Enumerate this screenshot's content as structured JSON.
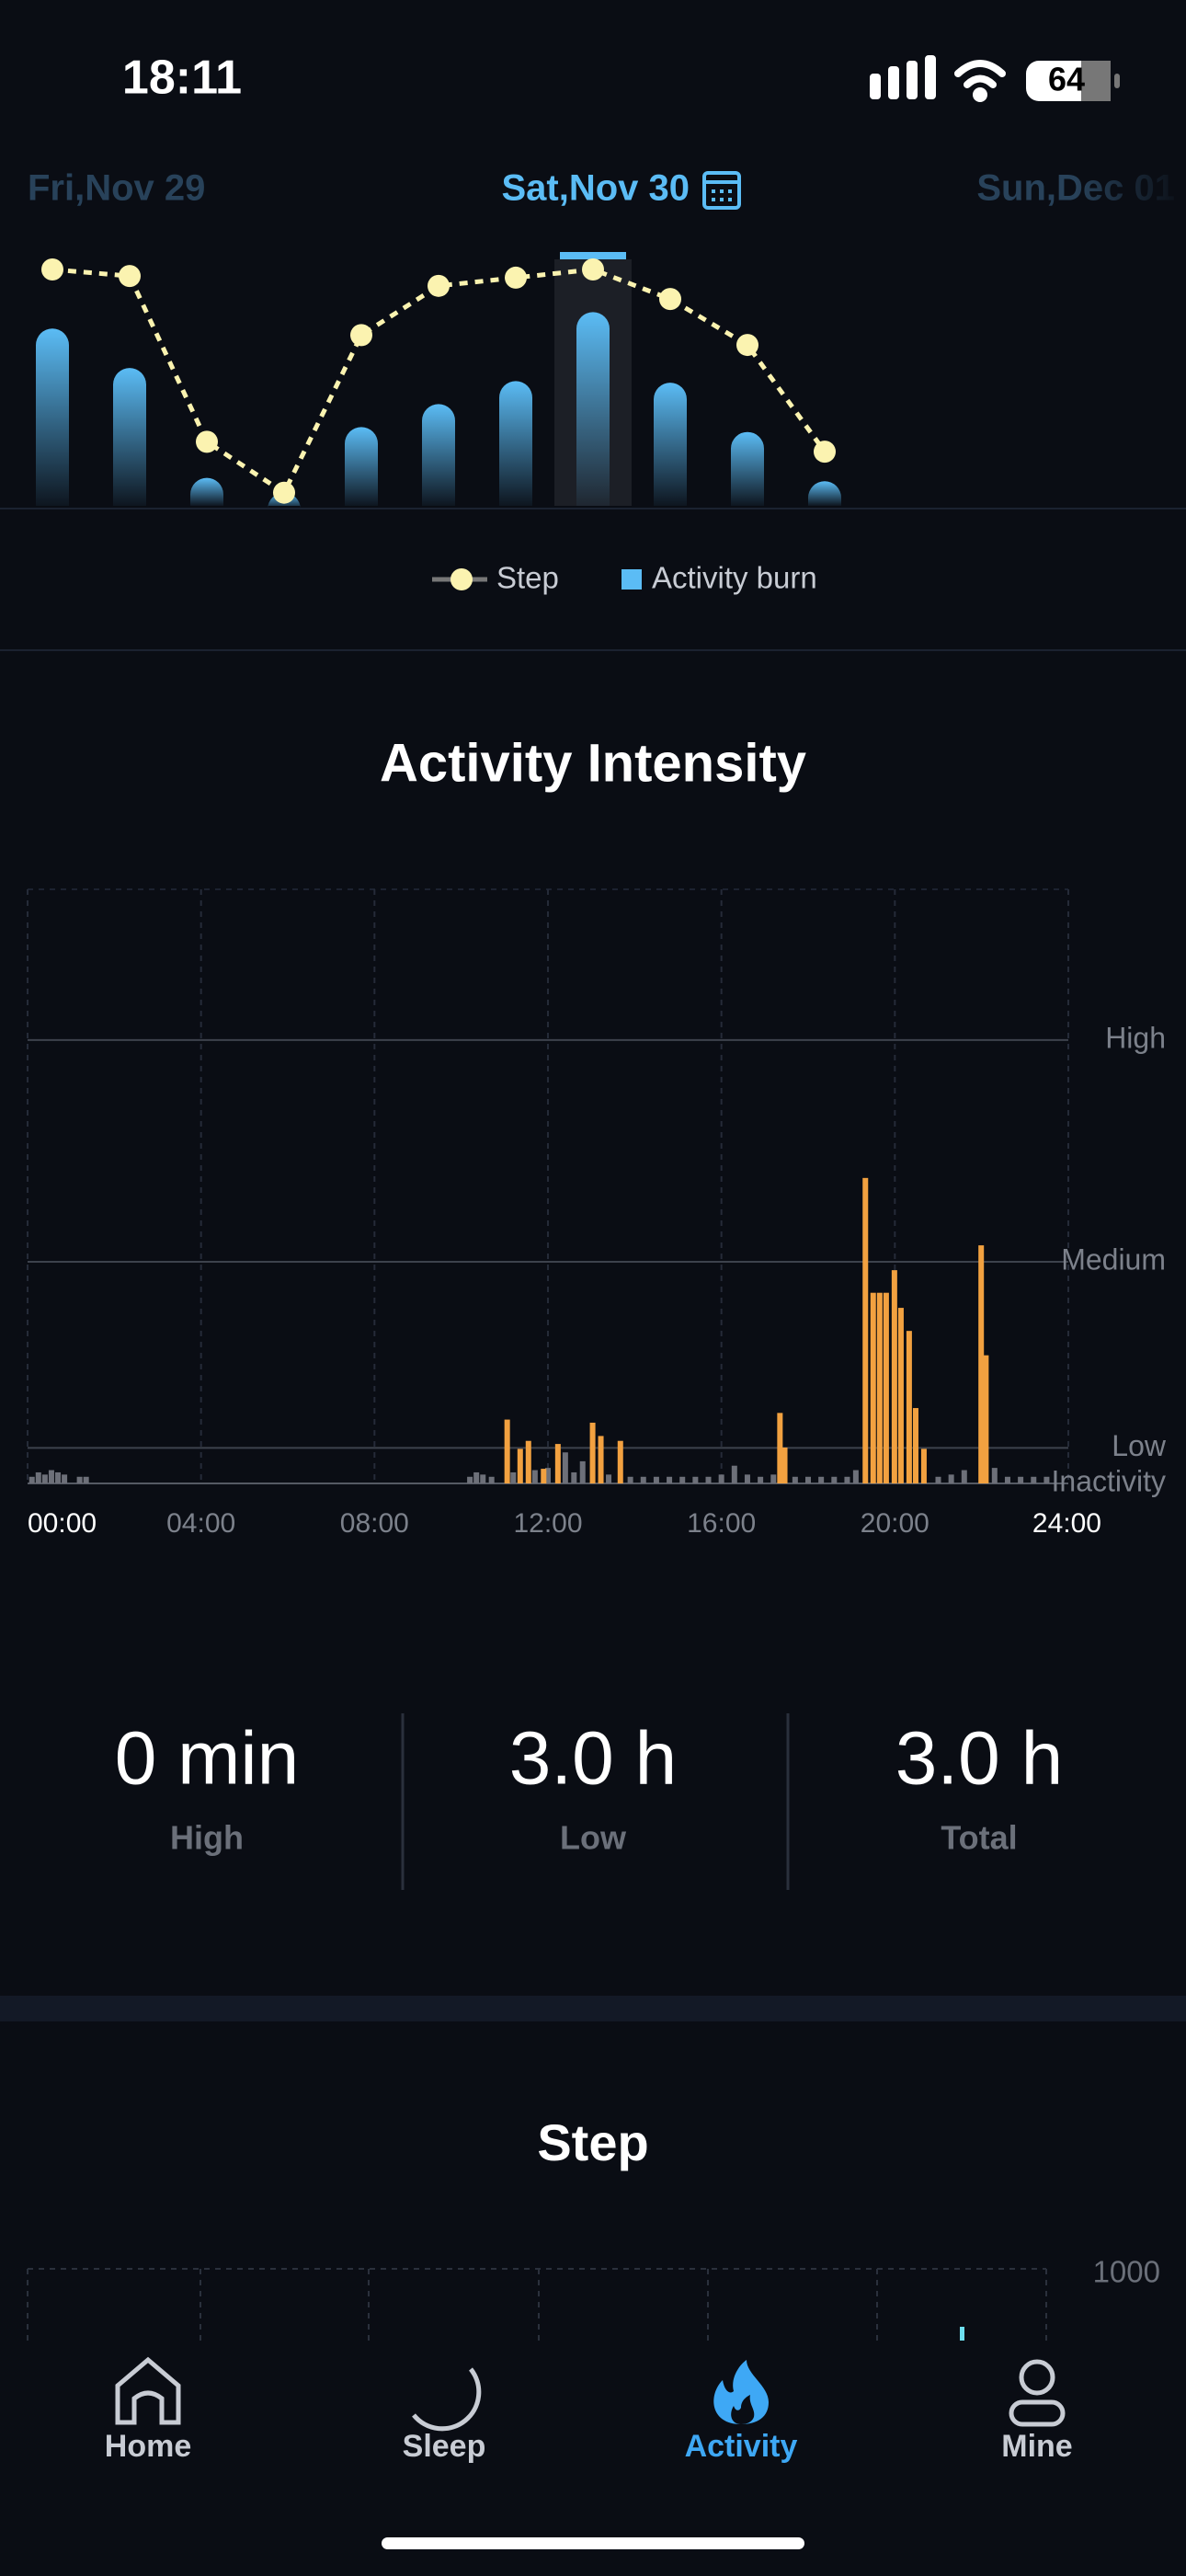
{
  "status_bar": {
    "time": "18:11",
    "battery": "64"
  },
  "date_nav": {
    "previous": "Fri,Nov 29",
    "current": "Sat,Nov 30",
    "next": "Sun,Dec 01"
  },
  "chart_data": [
    {
      "type": "bar_line",
      "selected": 7,
      "series": [
        {
          "name": "Step",
          "type": "line",
          "color": "#fbf3b0",
          "values": [
            144,
            140,
            39,
            8,
            104,
            134,
            139,
            144,
            126,
            98,
            33
          ]
        },
        {
          "name": "Activity burn",
          "type": "bar",
          "color": "#5bbcf5",
          "values": [
            108,
            84,
            17,
            8,
            48,
            62,
            76,
            118,
            75,
            45,
            15
          ]
        }
      ]
    },
    {
      "type": "bar",
      "title": "Activity Intensity",
      "xlim": [
        0,
        24
      ],
      "xticks": [
        {
          "value": 0,
          "label": "00:00"
        },
        {
          "value": 4,
          "label": "04:00"
        },
        {
          "value": 8,
          "label": "08:00"
        },
        {
          "value": 12,
          "label": "12:00"
        },
        {
          "value": 16,
          "label": "16:00"
        },
        {
          "value": 20,
          "label": "20:00"
        },
        {
          "value": 24,
          "label": "24:00"
        }
      ],
      "ylim": [
        0,
        134
      ],
      "yticks": [
        {
          "value": 0,
          "label": "Inactivity"
        },
        {
          "value": 8,
          "label": "Low"
        },
        {
          "value": 50,
          "label": "Medium"
        },
        {
          "value": 100,
          "label": "High"
        }
      ],
      "series": [
        {
          "color": "#6d7079",
          "x": [
            0.1,
            0.25,
            0.4,
            0.55,
            0.7,
            0.85,
            1.2,
            1.35,
            10.2,
            10.35,
            10.5,
            10.7,
            11.2,
            11.7,
            12.0,
            12.4,
            12.6,
            12.8,
            13.4,
            13.9,
            14.2,
            14.5,
            14.8,
            15.1,
            15.4,
            15.7,
            16.0,
            16.3,
            16.6,
            16.9,
            17.2,
            17.7,
            18.0,
            18.3,
            18.6,
            18.9,
            19.1,
            21.0,
            21.3,
            21.6,
            22.3,
            22.6,
            22.9,
            23.2,
            23.5
          ],
          "values": [
            1.5,
            2.5,
            2,
            3,
            2.5,
            2,
            1.5,
            1.5,
            1.5,
            2.5,
            2,
            1.5,
            2.5,
            3,
            3.5,
            7,
            2.5,
            5,
            2,
            1.5,
            1.5,
            1.5,
            1.5,
            1.5,
            1.5,
            1.5,
            2,
            4,
            2,
            1.5,
            2,
            1.5,
            1.5,
            1.5,
            1.5,
            1.5,
            3,
            1.5,
            2,
            3,
            3.5,
            1.5,
            1.5,
            1.5,
            1.5
          ]
        },
        {
          "color": "#f2a140",
          "x": [
            11.06,
            11.36,
            11.55,
            11.9,
            12.23,
            13.03,
            13.22,
            13.67,
            17.35,
            17.46,
            19.32,
            19.5,
            19.65,
            19.8,
            19.99,
            20.14,
            20.33,
            20.48,
            20.67,
            21.99,
            22.1
          ],
          "values": [
            14.4,
            7.8,
            9.6,
            3.3,
            8.9,
            13.7,
            10.7,
            9.6,
            15.9,
            8.1,
            68.9,
            43,
            43,
            43,
            48.1,
            39.6,
            34.4,
            17,
            7.8,
            53.7,
            28.9
          ]
        }
      ]
    }
  ],
  "summary": [
    {
      "value": "0 min",
      "label": "High"
    },
    {
      "value": "3.0 h",
      "label": "Low"
    },
    {
      "value": "3.0 h",
      "label": "Total"
    }
  ],
  "step_section": {
    "title": "Step",
    "ytick": "1000"
  },
  "tab_bar": [
    "Home",
    "Sleep",
    "Activity",
    "Mine"
  ]
}
